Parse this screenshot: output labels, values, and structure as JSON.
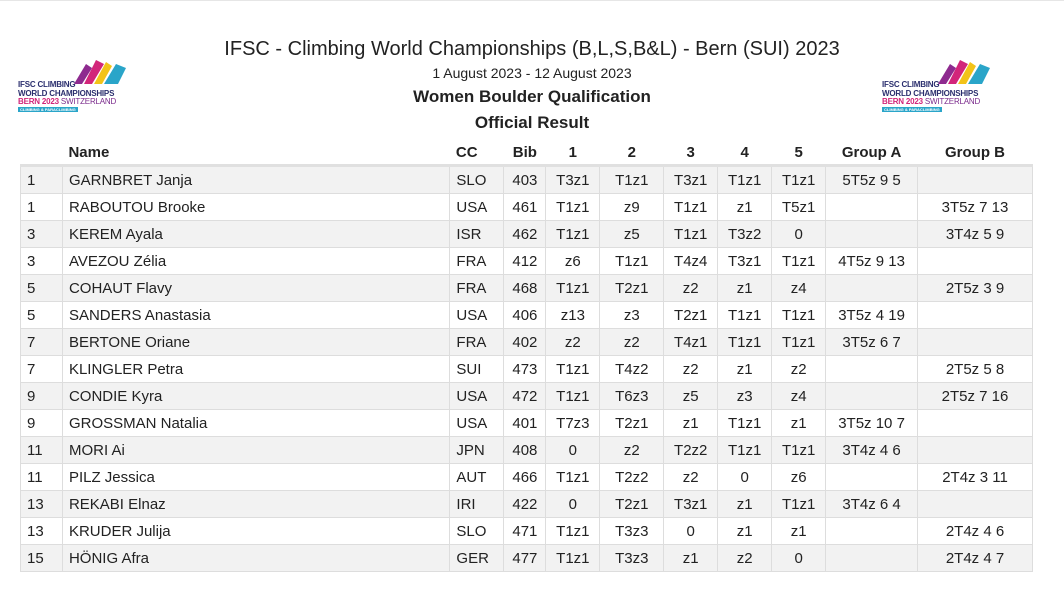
{
  "header": {
    "title": "IFSC - Climbing World Championships (B,L,S,B&L) - Bern (SUI) 2023",
    "dates": "1 August 2023 - 12 August 2023",
    "event": "Women Boulder Qualification",
    "result_type": "Official Result"
  },
  "logo": {
    "line1": "IFSC CLIMBING",
    "line2": "WORLD CHAMPIONSHIPS",
    "line3_year": "BERN 2023",
    "line3_country": "SWITZERLAND",
    "line4": "CLIMBING & PARACLIMBING",
    "colors": [
      "#8e2a8f",
      "#d2257a",
      "#f2c318",
      "#2aa5c9",
      "#2b2f6e"
    ]
  },
  "table": {
    "columns": [
      "",
      "Name",
      "CC",
      "Bib",
      "1",
      "2",
      "3",
      "4",
      "5",
      "Group A",
      "Group B"
    ],
    "rows": [
      [
        "1",
        "GARNBRET Janja",
        "SLO",
        "403",
        "T3z1",
        "T1z1",
        "T3z1",
        "T1z1",
        "T1z1",
        "5T5z 9 5",
        ""
      ],
      [
        "1",
        "RABOUTOU Brooke",
        "USA",
        "461",
        "T1z1",
        "z9",
        "T1z1",
        "z1",
        "T5z1",
        "",
        "3T5z 7 13"
      ],
      [
        "3",
        "KEREM Ayala",
        "ISR",
        "462",
        "T1z1",
        "z5",
        "T1z1",
        "T3z2",
        "0",
        "",
        "3T4z 5 9"
      ],
      [
        "3",
        "AVEZOU Zélia",
        "FRA",
        "412",
        "z6",
        "T1z1",
        "T4z4",
        "T3z1",
        "T1z1",
        "4T5z 9 13",
        ""
      ],
      [
        "5",
        "COHAUT Flavy",
        "FRA",
        "468",
        "T1z1",
        "T2z1",
        "z2",
        "z1",
        "z4",
        "",
        "2T5z 3 9"
      ],
      [
        "5",
        "SANDERS Anastasia",
        "USA",
        "406",
        "z13",
        "z3",
        "T2z1",
        "T1z1",
        "T1z1",
        "3T5z 4 19",
        ""
      ],
      [
        "7",
        "BERTONE Oriane",
        "FRA",
        "402",
        "z2",
        "z2",
        "T4z1",
        "T1z1",
        "T1z1",
        "3T5z 6 7",
        ""
      ],
      [
        "7",
        "KLINGLER Petra",
        "SUI",
        "473",
        "T1z1",
        "T4z2",
        "z2",
        "z1",
        "z2",
        "",
        "2T5z 5 8"
      ],
      [
        "9",
        "CONDIE Kyra",
        "USA",
        "472",
        "T1z1",
        "T6z3",
        "z5",
        "z3",
        "z4",
        "",
        "2T5z 7 16"
      ],
      [
        "9",
        "GROSSMAN Natalia",
        "USA",
        "401",
        "T7z3",
        "T2z1",
        "z1",
        "T1z1",
        "z1",
        "3T5z 10 7",
        ""
      ],
      [
        "11",
        "MORI Ai",
        "JPN",
        "408",
        "0",
        "z2",
        "T2z2",
        "T1z1",
        "T1z1",
        "3T4z 4 6",
        ""
      ],
      [
        "11",
        "PILZ Jessica",
        "AUT",
        "466",
        "T1z1",
        "T2z2",
        "z2",
        "0",
        "z6",
        "",
        "2T4z 3 11"
      ],
      [
        "13",
        "REKABI Elnaz",
        "IRI",
        "422",
        "0",
        "T2z1",
        "T3z1",
        "z1",
        "T1z1",
        "3T4z 6 4",
        ""
      ],
      [
        "13",
        "KRUDER Julija",
        "SLO",
        "471",
        "T1z1",
        "T3z3",
        "0",
        "z1",
        "z1",
        "",
        "2T4z 4 6"
      ],
      [
        "15",
        "HÖNIG Afra",
        "GER",
        "477",
        "T1z1",
        "T3z3",
        "z1",
        "z2",
        "0",
        "",
        "2T4z 4 7"
      ]
    ]
  }
}
